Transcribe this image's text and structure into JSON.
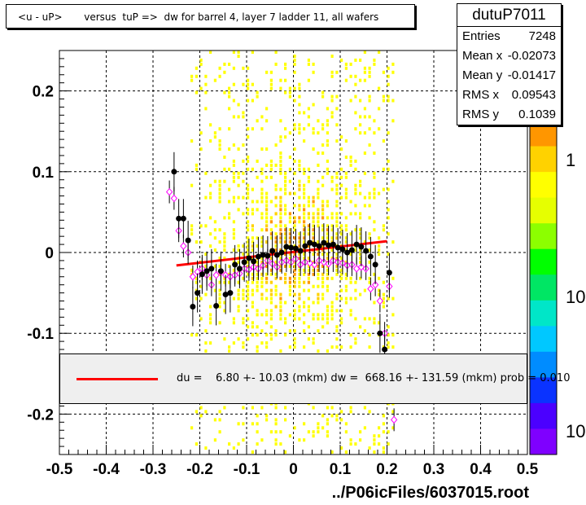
{
  "title": "<u - uP>       versus  tuP =>  dw for barrel 4, layer 7 ladder 11, all wafers",
  "stats": {
    "name": "dutuP7011",
    "rows": [
      {
        "label": "Entries",
        "value": "7248"
      },
      {
        "label": "Mean x",
        "value": "-0.02073"
      },
      {
        "label": "Mean y",
        "value": "-0.01417"
      },
      {
        "label": "RMS x",
        "value": "0.09543"
      },
      {
        "label": "RMS y",
        "value": "0.1039"
      }
    ]
  },
  "legend": {
    "fit_text": "du =    6.80 +- 10.03 (mkm) dw =  668.16 +- 131.59 (mkm) prob = 0.010"
  },
  "footer": "../P06icFiles/6037015.root",
  "colors": {
    "fit_line": "#ff0000",
    "profile_black": "#000000",
    "profile_open": "#ff00ff",
    "palette": [
      "#7f00ff",
      "#4b00ff",
      "#0a33ff",
      "#008cff",
      "#00c8ff",
      "#00e6c8",
      "#00e664",
      "#00ff00",
      "#8cff00",
      "#e6ff00",
      "#ffff00",
      "#ffd200",
      "#ff9600"
    ]
  },
  "chart_data": {
    "type": "heatmap",
    "xlim": [
      -0.5,
      0.5
    ],
    "ylim": [
      -0.25,
      0.25
    ],
    "x_ticks": [
      "-0.5",
      "-0.4",
      "-0.3",
      "-0.2",
      "-0.1",
      "0",
      "0.1",
      "0.2",
      "0.3",
      "0.4",
      "0.5"
    ],
    "y_ticks": [
      "-0.2",
      "-0.1",
      "0",
      "0.1",
      "0.2"
    ],
    "z_ticks": [
      "1",
      "10",
      "10"
    ],
    "grid": true,
    "heatmap_x_range": [
      -0.22,
      0.22
    ],
    "profile_black": {
      "x": [
        -0.255,
        -0.245,
        -0.235,
        -0.225,
        -0.215,
        -0.205,
        -0.195,
        -0.185,
        -0.175,
        -0.165,
        -0.155,
        -0.145,
        -0.135,
        -0.125,
        -0.115,
        -0.105,
        -0.095,
        -0.085,
        -0.075,
        -0.065,
        -0.055,
        -0.045,
        -0.035,
        -0.025,
        -0.015,
        -0.005,
        0.005,
        0.015,
        0.025,
        0.035,
        0.045,
        0.055,
        0.065,
        0.075,
        0.085,
        0.095,
        0.105,
        0.115,
        0.125,
        0.135,
        0.145,
        0.155,
        0.165,
        0.175,
        0.185,
        0.195,
        0.205
      ],
      "y": [
        0.1,
        0.042,
        0.042,
        0.015,
        -0.067,
        -0.05,
        -0.027,
        -0.023,
        -0.02,
        -0.066,
        -0.023,
        -0.052,
        -0.05,
        -0.015,
        -0.02,
        -0.012,
        -0.007,
        -0.011,
        -0.005,
        -0.003,
        -0.004,
        0.002,
        -0.003,
        0.0,
        0.007,
        0.006,
        0.005,
        0.002,
        0.008,
        0.012,
        0.01,
        0.008,
        0.012,
        0.009,
        0.01,
        0.006,
        0.004,
        0.0,
        0.003,
        0.01,
        0.007,
        0.002,
        -0.005,
        -0.015,
        -0.1,
        -0.12,
        -0.025
      ]
    },
    "profile_open": {
      "x": [
        -0.265,
        -0.255,
        -0.245,
        -0.235,
        -0.225,
        -0.215,
        -0.205,
        -0.195,
        -0.185,
        -0.175,
        -0.165,
        -0.155,
        -0.145,
        -0.135,
        -0.125,
        -0.115,
        -0.105,
        -0.095,
        -0.085,
        -0.075,
        -0.065,
        -0.055,
        -0.045,
        -0.035,
        -0.025,
        -0.015,
        -0.005,
        0.005,
        0.015,
        0.025,
        0.035,
        0.045,
        0.055,
        0.065,
        0.075,
        0.085,
        0.095,
        0.105,
        0.115,
        0.125,
        0.135,
        0.145,
        0.155,
        0.165,
        0.175,
        0.185,
        0.195,
        0.205,
        0.215
      ],
      "y": [
        0.075,
        0.067,
        0.027,
        0.008,
        0.0,
        -0.03,
        -0.024,
        -0.02,
        -0.028,
        -0.04,
        -0.028,
        -0.024,
        -0.028,
        -0.03,
        -0.028,
        -0.026,
        -0.02,
        -0.021,
        -0.018,
        -0.02,
        -0.016,
        -0.01,
        -0.014,
        -0.018,
        -0.012,
        -0.01,
        -0.012,
        -0.008,
        -0.015,
        -0.012,
        -0.013,
        -0.015,
        -0.01,
        -0.012,
        -0.014,
        -0.01,
        -0.012,
        -0.013,
        -0.016,
        -0.015,
        -0.02,
        -0.018,
        -0.02,
        -0.045,
        -0.04,
        -0.06,
        -0.1,
        -0.042,
        -0.207
      ]
    },
    "fit_line": {
      "x": [
        -0.25,
        0.2
      ],
      "y": [
        -0.016,
        0.014
      ]
    }
  }
}
